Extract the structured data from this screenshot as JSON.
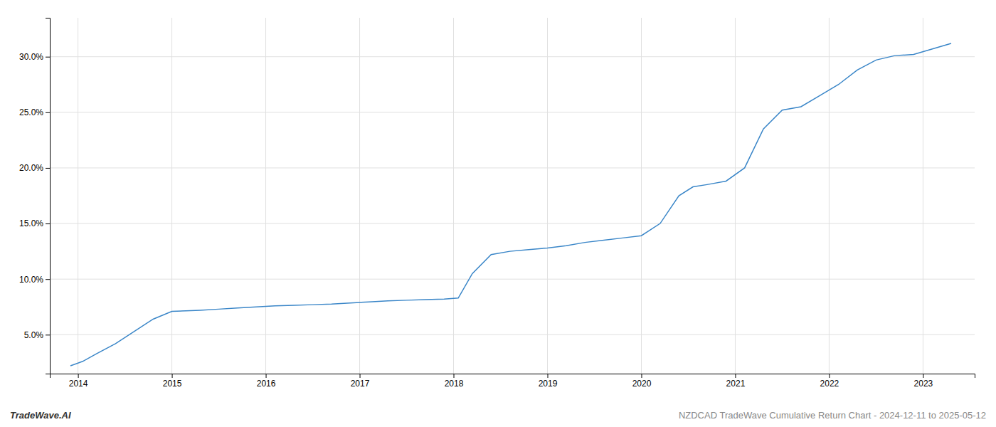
{
  "chart_data": {
    "type": "line",
    "x": [
      2013.92,
      2014.05,
      2014.2,
      2014.4,
      2014.6,
      2014.8,
      2015.0,
      2015.15,
      2015.3,
      2015.5,
      2015.7,
      2015.9,
      2016.1,
      2016.3,
      2016.5,
      2016.7,
      2016.9,
      2017.1,
      2017.3,
      2017.5,
      2017.7,
      2017.9,
      2018.05,
      2018.2,
      2018.4,
      2018.6,
      2018.8,
      2019.0,
      2019.2,
      2019.4,
      2019.6,
      2019.8,
      2020.0,
      2020.2,
      2020.4,
      2020.55,
      2020.7,
      2020.9,
      2021.1,
      2021.3,
      2021.5,
      2021.7,
      2021.9,
      2022.1,
      2022.3,
      2022.5,
      2022.7,
      2022.9,
      2023.1,
      2023.3
    ],
    "values": [
      2.2,
      2.6,
      3.3,
      4.2,
      5.3,
      6.4,
      7.1,
      7.15,
      7.2,
      7.3,
      7.4,
      7.5,
      7.6,
      7.65,
      7.7,
      7.75,
      7.85,
      7.95,
      8.05,
      8.1,
      8.15,
      8.2,
      8.3,
      10.5,
      12.2,
      12.5,
      12.65,
      12.8,
      13.0,
      13.3,
      13.5,
      13.7,
      13.9,
      15.0,
      17.5,
      18.3,
      18.5,
      18.8,
      20.0,
      23.5,
      25.2,
      25.5,
      26.5,
      27.5,
      28.8,
      29.7,
      30.1,
      30.2,
      30.7,
      31.2
    ],
    "color": "#3a86c8",
    "xlim": [
      2013.7,
      2023.55
    ],
    "xticks": [
      2014,
      2015,
      2016,
      2017,
      2018,
      2019,
      2020,
      2021,
      2022,
      2023
    ],
    "ylim": [
      1.5,
      33.5
    ],
    "yticks": [
      {
        "value": 5.0,
        "label": "5.0%"
      },
      {
        "value": 10.0,
        "label": "10.0%"
      },
      {
        "value": 15.0,
        "label": "15.0%"
      },
      {
        "value": 20.0,
        "label": "20.0%"
      },
      {
        "value": 25.0,
        "label": "25.0%"
      },
      {
        "value": 30.0,
        "label": "30.0%"
      }
    ],
    "grid": true,
    "annotations": [
      "TradeWave.AI",
      "NZDCAD TradeWave Cumulative Return Chart - 2024-12-11 to 2025-05-12"
    ]
  }
}
